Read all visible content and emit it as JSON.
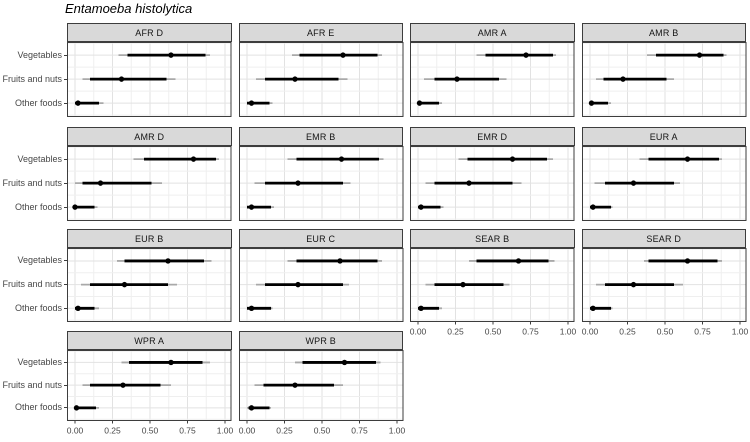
{
  "chart_data": {
    "type": "scatter",
    "title": "Entamoeba histolytica",
    "subtitle": "",
    "description": "Faceted forest plot: point estimate (black dot) with inner thick black interval and outer thin grey interval per food category, one panel per WHO subregion",
    "categories": [
      "Vegetables",
      "Fruits and nuts",
      "Other foods"
    ],
    "xlim": [
      0,
      1
    ],
    "x_ticks": [
      0,
      0.25,
      0.5,
      0.75,
      1
    ],
    "x_tick_labels": [
      "0.00",
      "0.25",
      "0.50",
      "0.75",
      "1.00"
    ],
    "grid": "on",
    "legend": "none",
    "facets": [
      {
        "label": "AFR D",
        "values": [
          {
            "category": "Vegetables",
            "point": 0.64,
            "inner": [
              0.35,
              0.87
            ],
            "outer": [
              0.29,
              0.9
            ]
          },
          {
            "category": "Fruits and nuts",
            "point": 0.31,
            "inner": [
              0.1,
              0.61
            ],
            "outer": [
              0.05,
              0.67
            ]
          },
          {
            "category": "Other foods",
            "point": 0.02,
            "inner": [
              0.0,
              0.16
            ],
            "outer": [
              0.0,
              0.19
            ]
          }
        ]
      },
      {
        "label": "AFR E",
        "values": [
          {
            "category": "Vegetables",
            "point": 0.64,
            "inner": [
              0.35,
              0.87
            ],
            "outer": [
              0.3,
              0.9
            ]
          },
          {
            "category": "Fruits and nuts",
            "point": 0.32,
            "inner": [
              0.12,
              0.61
            ],
            "outer": [
              0.06,
              0.67
            ]
          },
          {
            "category": "Other foods",
            "point": 0.03,
            "inner": [
              0.0,
              0.15
            ],
            "outer": [
              0.0,
              0.17
            ]
          }
        ]
      },
      {
        "label": "AMR A",
        "values": [
          {
            "category": "Vegetables",
            "point": 0.72,
            "inner": [
              0.45,
              0.9
            ],
            "outer": [
              0.39,
              0.92
            ]
          },
          {
            "category": "Fruits and nuts",
            "point": 0.26,
            "inner": [
              0.11,
              0.54
            ],
            "outer": [
              0.04,
              0.59
            ]
          },
          {
            "category": "Other foods",
            "point": 0.01,
            "inner": [
              0.0,
              0.14
            ],
            "outer": [
              0.0,
              0.16
            ]
          }
        ]
      },
      {
        "label": "AMR B",
        "values": [
          {
            "category": "Vegetables",
            "point": 0.73,
            "inner": [
              0.44,
              0.89
            ],
            "outer": [
              0.38,
              0.91
            ]
          },
          {
            "category": "Fruits and nuts",
            "point": 0.22,
            "inner": [
              0.09,
              0.51
            ],
            "outer": [
              0.04,
              0.56
            ]
          },
          {
            "category": "Other foods",
            "point": 0.01,
            "inner": [
              0.0,
              0.12
            ],
            "outer": [
              0.0,
              0.14
            ]
          }
        ]
      },
      {
        "label": "AMR D",
        "values": [
          {
            "category": "Vegetables",
            "point": 0.79,
            "inner": [
              0.46,
              0.94
            ],
            "outer": [
              0.39,
              0.96
            ]
          },
          {
            "category": "Fruits and nuts",
            "point": 0.17,
            "inner": [
              0.05,
              0.51
            ],
            "outer": [
              0.0,
              0.58
            ]
          },
          {
            "category": "Other foods",
            "point": 0.0,
            "inner": [
              0.0,
              0.13
            ],
            "outer": [
              0.0,
              0.15
            ]
          }
        ]
      },
      {
        "label": "EMR B",
        "values": [
          {
            "category": "Vegetables",
            "point": 0.63,
            "inner": [
              0.33,
              0.88
            ],
            "outer": [
              0.27,
              0.91
            ]
          },
          {
            "category": "Fruits and nuts",
            "point": 0.34,
            "inner": [
              0.12,
              0.64
            ],
            "outer": [
              0.05,
              0.69
            ]
          },
          {
            "category": "Other foods",
            "point": 0.03,
            "inner": [
              0.0,
              0.16
            ],
            "outer": [
              0.0,
              0.18
            ]
          }
        ]
      },
      {
        "label": "EMR D",
        "values": [
          {
            "category": "Vegetables",
            "point": 0.63,
            "inner": [
              0.33,
              0.86
            ],
            "outer": [
              0.27,
              0.9
            ]
          },
          {
            "category": "Fruits and nuts",
            "point": 0.34,
            "inner": [
              0.11,
              0.63
            ],
            "outer": [
              0.05,
              0.69
            ]
          },
          {
            "category": "Other foods",
            "point": 0.02,
            "inner": [
              0.0,
              0.15
            ],
            "outer": [
              0.0,
              0.17
            ]
          }
        ]
      },
      {
        "label": "EUR A",
        "values": [
          {
            "category": "Vegetables",
            "point": 0.65,
            "inner": [
              0.39,
              0.86
            ],
            "outer": [
              0.33,
              0.88
            ]
          },
          {
            "category": "Fruits and nuts",
            "point": 0.29,
            "inner": [
              0.1,
              0.56
            ],
            "outer": [
              0.03,
              0.6
            ]
          },
          {
            "category": "Other foods",
            "point": 0.02,
            "inner": [
              0.0,
              0.14
            ],
            "outer": [
              0.0,
              0.15
            ]
          }
        ]
      },
      {
        "label": "EUR B",
        "values": [
          {
            "category": "Vegetables",
            "point": 0.62,
            "inner": [
              0.33,
              0.86
            ],
            "outer": [
              0.28,
              0.91
            ]
          },
          {
            "category": "Fruits and nuts",
            "point": 0.33,
            "inner": [
              0.1,
              0.62
            ],
            "outer": [
              0.04,
              0.68
            ]
          },
          {
            "category": "Other foods",
            "point": 0.02,
            "inner": [
              0.0,
              0.13
            ],
            "outer": [
              0.0,
              0.16
            ]
          }
        ]
      },
      {
        "label": "EUR C",
        "values": [
          {
            "category": "Vegetables",
            "point": 0.62,
            "inner": [
              0.33,
              0.87
            ],
            "outer": [
              0.27,
              0.9
            ]
          },
          {
            "category": "Fruits and nuts",
            "point": 0.34,
            "inner": [
              0.12,
              0.64
            ],
            "outer": [
              0.06,
              0.68
            ]
          },
          {
            "category": "Other foods",
            "point": 0.03,
            "inner": [
              0.0,
              0.16
            ],
            "outer": [
              0.0,
              0.17
            ]
          }
        ]
      },
      {
        "label": "SEAR B",
        "values": [
          {
            "category": "Vegetables",
            "point": 0.67,
            "inner": [
              0.39,
              0.87
            ],
            "outer": [
              0.34,
              0.91
            ]
          },
          {
            "category": "Fruits and nuts",
            "point": 0.3,
            "inner": [
              0.11,
              0.57
            ],
            "outer": [
              0.05,
              0.61
            ]
          },
          {
            "category": "Other foods",
            "point": 0.02,
            "inner": [
              0.0,
              0.14
            ],
            "outer": [
              0.0,
              0.16
            ]
          }
        ]
      },
      {
        "label": "SEAR D",
        "values": [
          {
            "category": "Vegetables",
            "point": 0.65,
            "inner": [
              0.39,
              0.85
            ],
            "outer": [
              0.36,
              0.88
            ]
          },
          {
            "category": "Fruits and nuts",
            "point": 0.29,
            "inner": [
              0.1,
              0.56
            ],
            "outer": [
              0.04,
              0.62
            ]
          },
          {
            "category": "Other foods",
            "point": 0.02,
            "inner": [
              0.0,
              0.14
            ],
            "outer": [
              0.0,
              0.15
            ]
          }
        ]
      },
      {
        "label": "WPR A",
        "values": [
          {
            "category": "Vegetables",
            "point": 0.64,
            "inner": [
              0.36,
              0.85
            ],
            "outer": [
              0.31,
              0.9
            ]
          },
          {
            "category": "Fruits and nuts",
            "point": 0.32,
            "inner": [
              0.1,
              0.57
            ],
            "outer": [
              0.05,
              0.64
            ]
          },
          {
            "category": "Other foods",
            "point": 0.01,
            "inner": [
              0.0,
              0.14
            ],
            "outer": [
              0.0,
              0.16
            ]
          }
        ]
      },
      {
        "label": "WPR B",
        "values": [
          {
            "category": "Vegetables",
            "point": 0.65,
            "inner": [
              0.37,
              0.86
            ],
            "outer": [
              0.32,
              0.89
            ]
          },
          {
            "category": "Fruits and nuts",
            "point": 0.32,
            "inner": [
              0.11,
              0.58
            ],
            "outer": [
              0.05,
              0.64
            ]
          },
          {
            "category": "Other foods",
            "point": 0.03,
            "inner": [
              0.01,
              0.15
            ],
            "outer": [
              0.0,
              0.16
            ]
          }
        ]
      }
    ],
    "colors": {
      "panel_bg": "#ffffff",
      "panel_border": "#3d3d3d",
      "strip_bg": "#d9d9d9",
      "strip_border": "#3d3d3d",
      "grid_major": "#e2e2e2",
      "grid_minor": "#efefef",
      "inner_interval": "#000000",
      "outer_interval": "#a9a9a9",
      "point": "#000000",
      "tick": "#3d3d3d",
      "axis_text": "#474747"
    }
  }
}
